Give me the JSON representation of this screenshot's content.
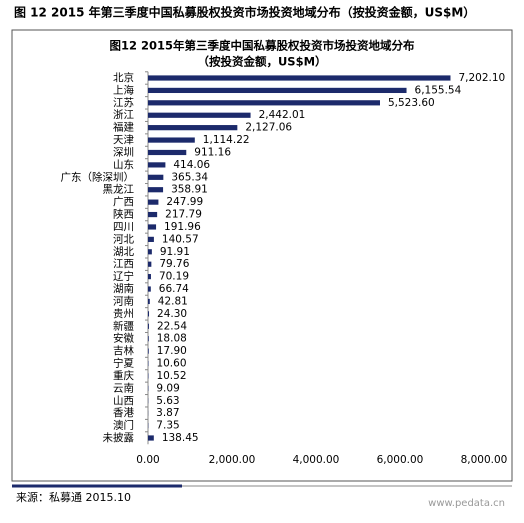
{
  "header": {
    "title": "图 12 2015 年第三季度中国私募股权投资市场投资地域分布（按投资金额，US$M）"
  },
  "chart_data": {
    "type": "hbar",
    "title": "图12 2015年第三季度中国私募股权投资市场投资地域分布",
    "subtitle": "（按投资金额，US$M）",
    "categories": [
      "北京",
      "上海",
      "江苏",
      "浙江",
      "福建",
      "天津",
      "深圳",
      "山东",
      "广东（除深圳）",
      "黑龙江",
      "广西",
      "陕西",
      "四川",
      "河北",
      "湖北",
      "江西",
      "辽宁",
      "湖南",
      "河南",
      "贵州",
      "新疆",
      "安徽",
      "吉林",
      "宁夏",
      "重庆",
      "云南",
      "山西",
      "香港",
      "澳门",
      "未披露"
    ],
    "values": [
      7202.1,
      6155.54,
      5523.6,
      2442.01,
      2127.06,
      1114.22,
      911.16,
      414.06,
      365.34,
      358.91,
      247.99,
      217.79,
      191.96,
      140.57,
      91.91,
      79.76,
      70.19,
      66.74,
      42.81,
      24.3,
      22.54,
      18.08,
      17.9,
      10.6,
      10.52,
      9.09,
      5.63,
      3.87,
      7.35,
      138.45
    ],
    "value_labels": [
      "7,202.10",
      "6,155.54",
      "5,523.60",
      "2,442.01",
      "2,127.06",
      "1,114.22",
      "911.16",
      "414.06",
      "365.34",
      "358.91",
      "247.99",
      "217.79",
      "191.96",
      "140.57",
      "91.91",
      "79.76",
      "70.19",
      "66.74",
      "42.81",
      "24.30",
      "22.54",
      "18.08",
      "17.90",
      "10.60",
      "10.52",
      "9.09",
      "5.63",
      "3.87",
      "7.35",
      "138.45"
    ],
    "color": "#1c2a6b",
    "xlim": [
      0,
      8000
    ],
    "xticks": [
      {
        "value": 0,
        "label": "0.00"
      },
      {
        "value": 2000,
        "label": "2,000.00"
      },
      {
        "value": 4000,
        "label": "4,000.00"
      },
      {
        "value": 6000,
        "label": "6,000.00"
      },
      {
        "value": 8000,
        "label": "8,000.00"
      }
    ],
    "grid": false
  },
  "footer": {
    "source": "来源：私募通 2015.10",
    "watermark": "www.pedata.cn"
  }
}
